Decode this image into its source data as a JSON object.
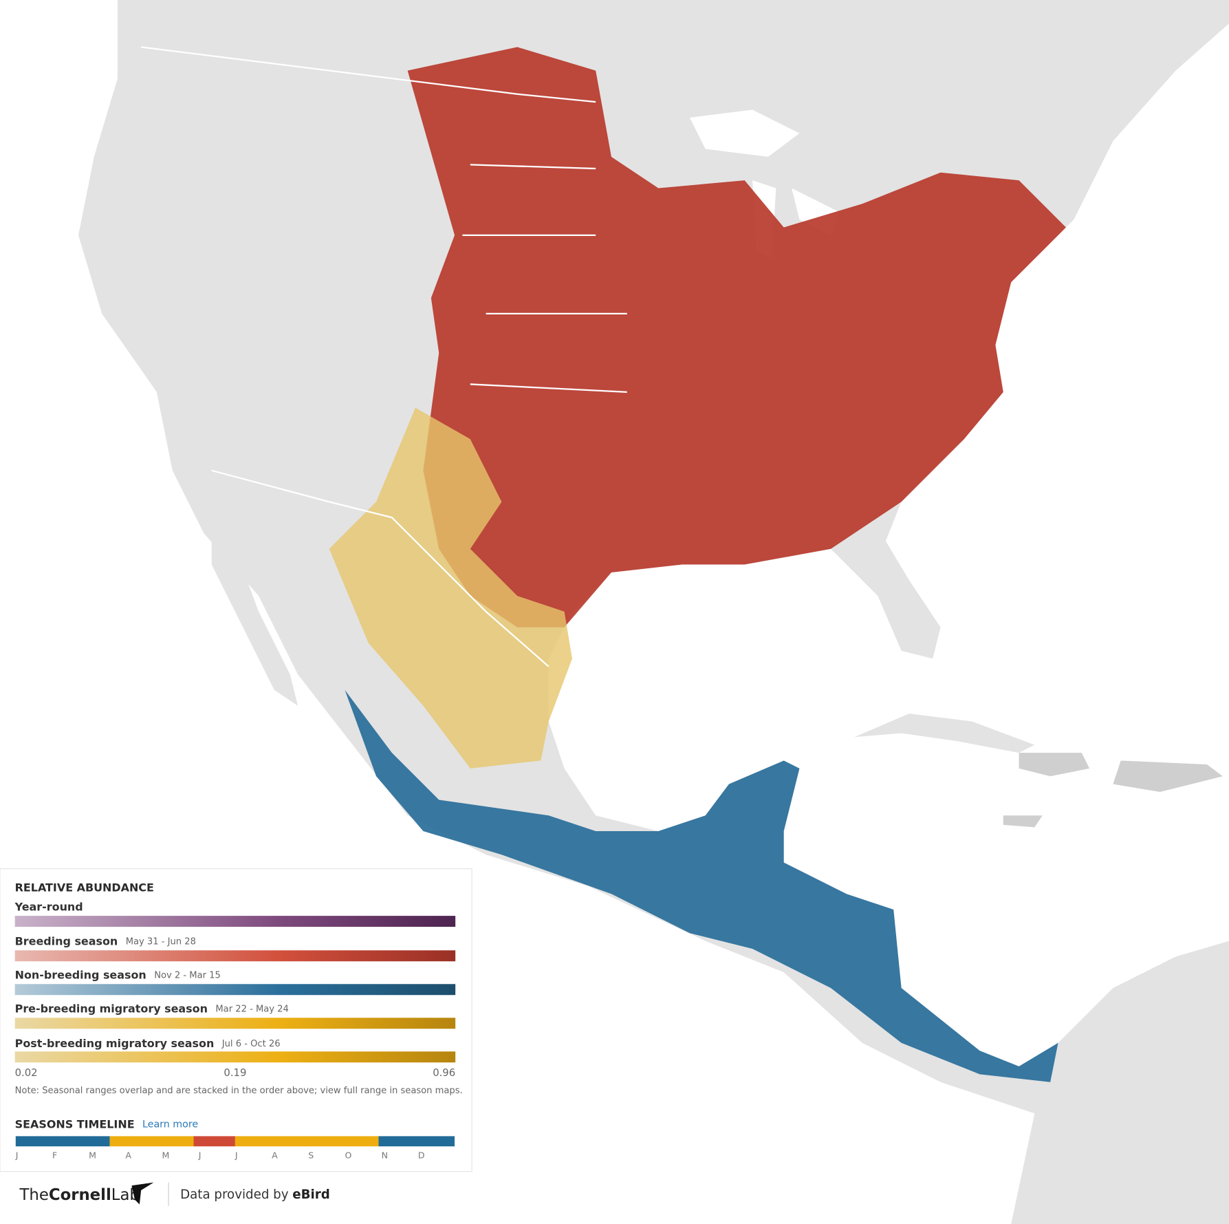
{
  "legend": {
    "title": "RELATIVE ABUNDANCE",
    "seasons": [
      {
        "name": "Year-round"
      },
      {
        "name": "Breeding season",
        "dates": "May 31 - Jun 28"
      },
      {
        "name": "Non-breeding season",
        "dates": "Nov 2 - Mar 15"
      },
      {
        "name": "Pre-breeding migratory season",
        "dates": "Mar 22 - May 24"
      },
      {
        "name": "Post-breeding migratory season",
        "dates": "Jul 6 - Oct 26"
      }
    ],
    "scale_labels": [
      0.02,
      0.19,
      0.96
    ],
    "note": "Note: Seasonal ranges overlap and are stacked in the order above; view full range in season maps."
  },
  "timeline": {
    "title": "SEASONS TIMELINE",
    "link": "Learn more",
    "months": [
      "J",
      "F",
      "M",
      "A",
      "M",
      "J",
      "J",
      "A",
      "S",
      "O",
      "N",
      "D"
    ]
  },
  "footer": {
    "logo_prefix": "The",
    "logo_bold": "Cornell",
    "logo_suffix": "Lab",
    "credit": "Data provided by",
    "credit_bold": "eBird"
  }
}
